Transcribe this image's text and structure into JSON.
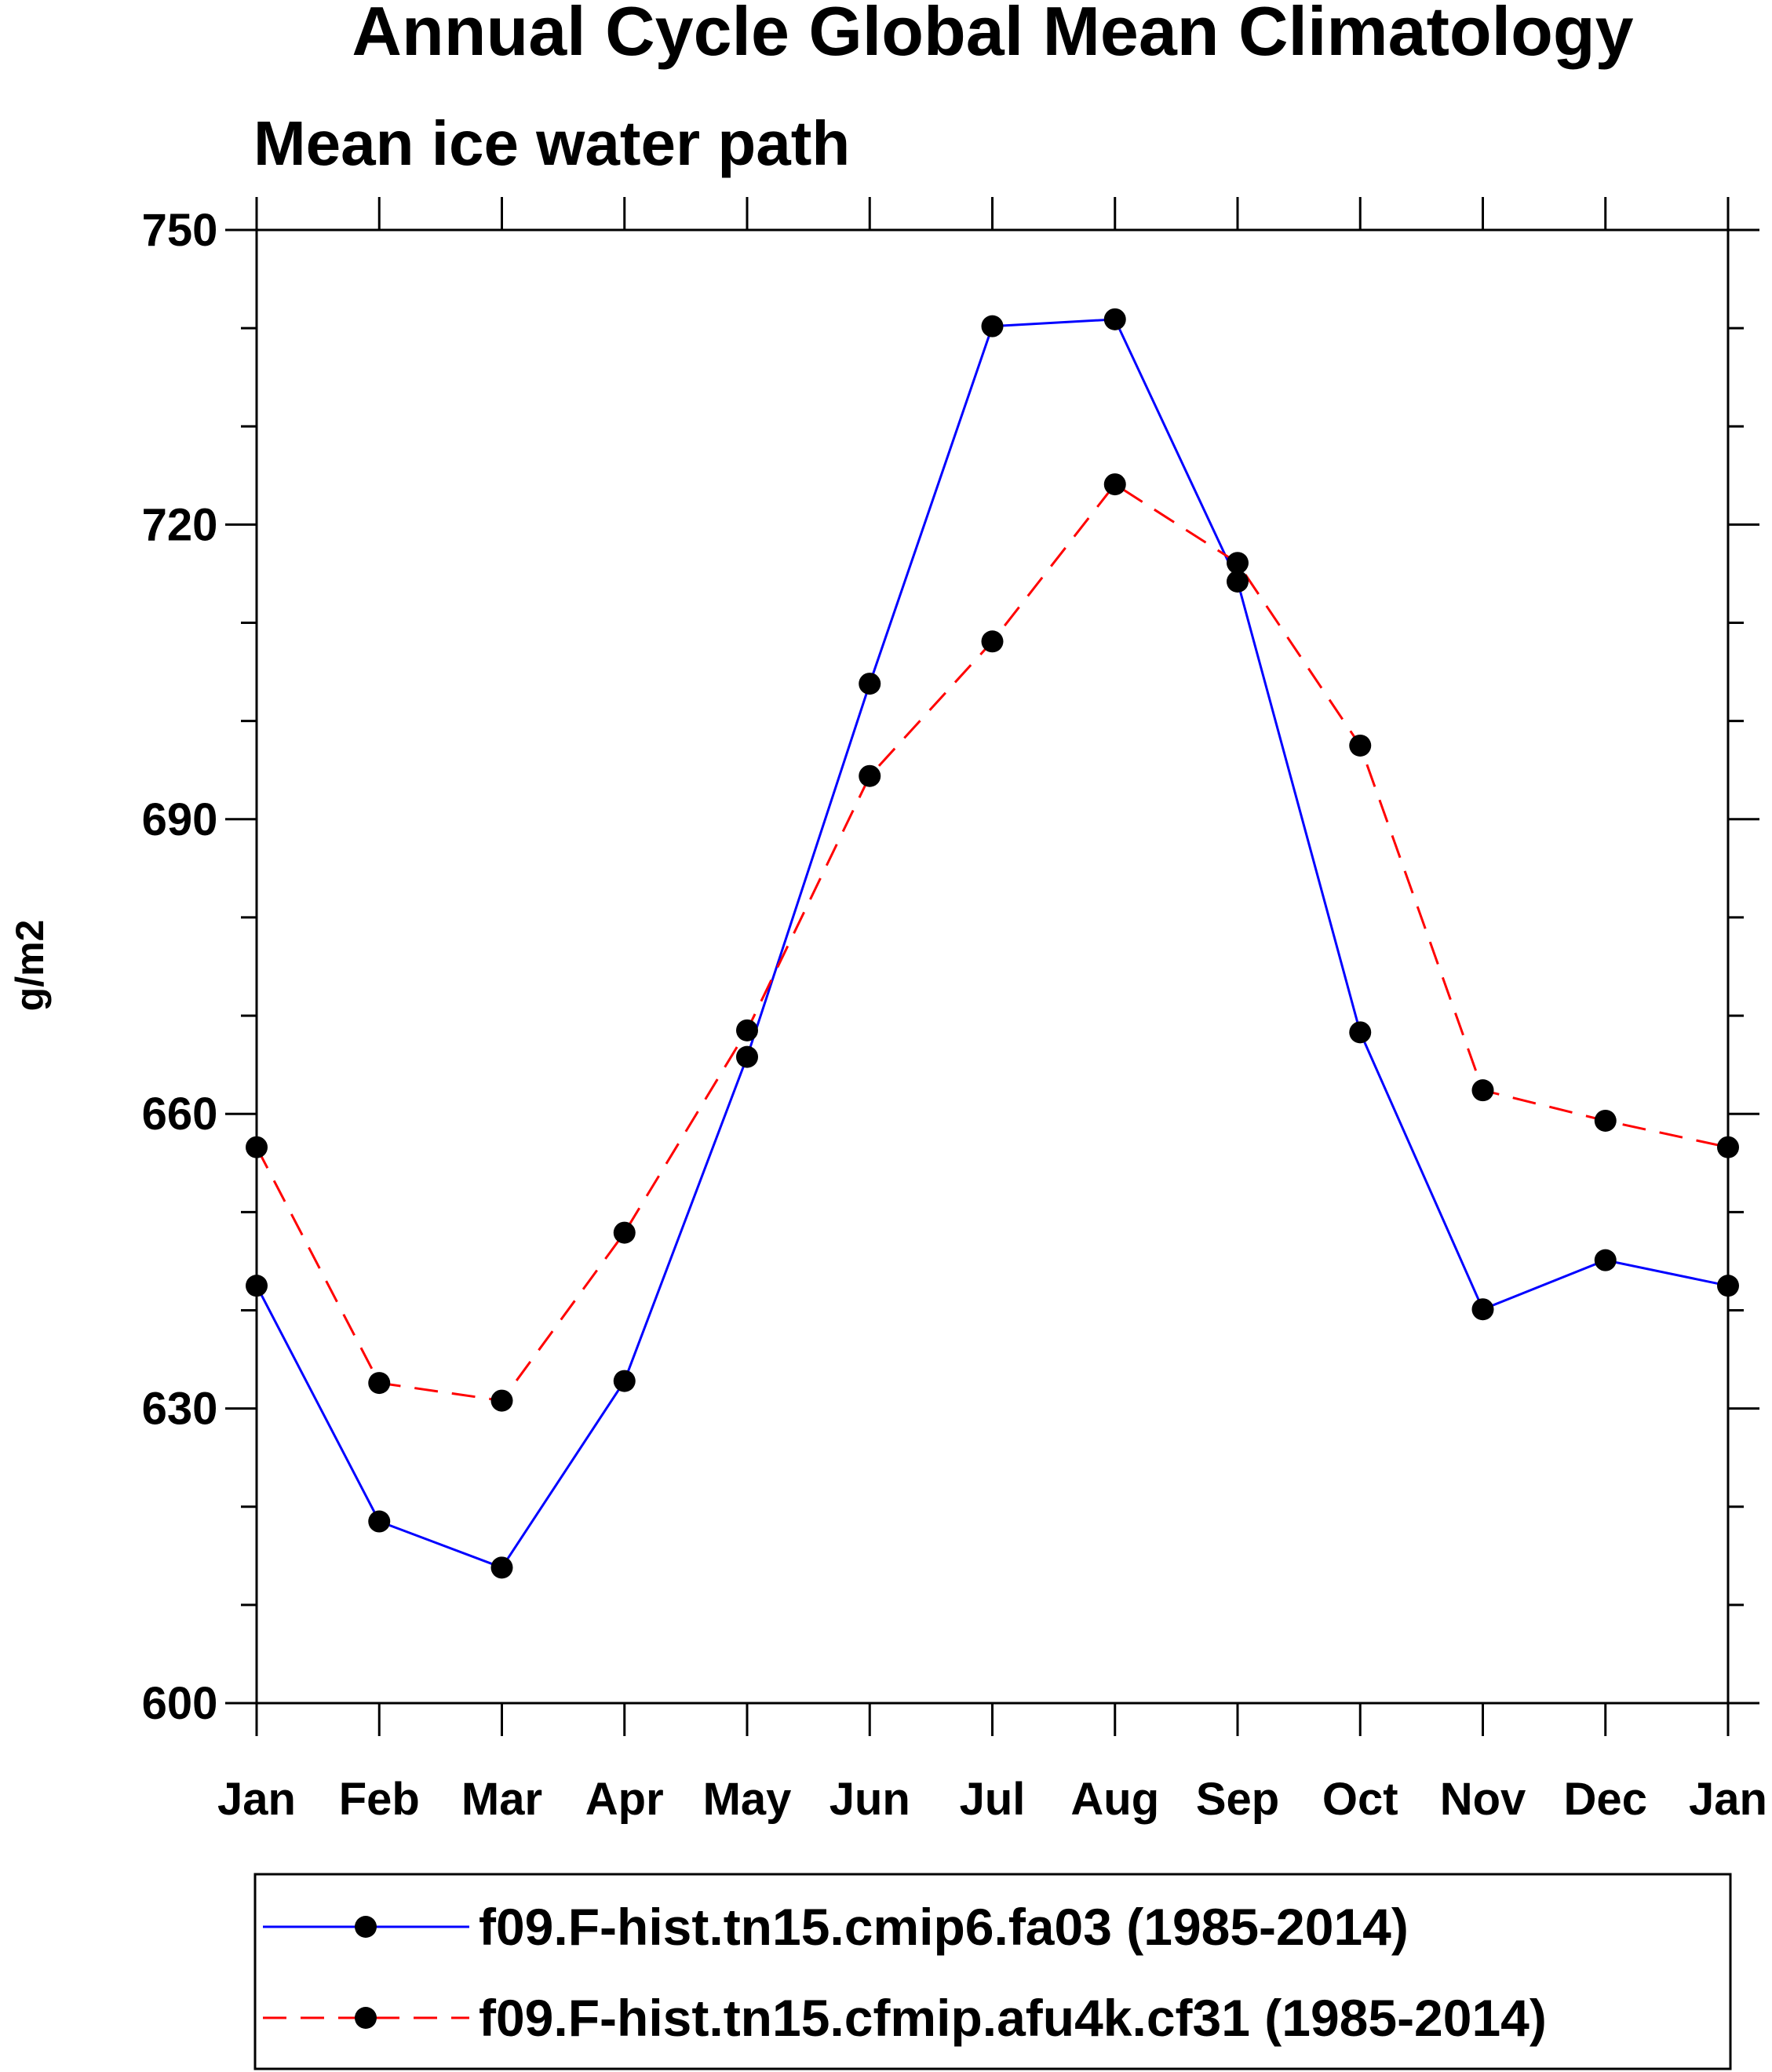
{
  "chart_data": {
    "type": "line",
    "title": "Annual Cycle Global Mean Climatology",
    "subtitle": "Mean ice water path",
    "xlabel": "",
    "ylabel": "g/m2",
    "categories": [
      "Jan",
      "Feb",
      "Mar",
      "Apr",
      "May",
      "Jun",
      "Jul",
      "Aug",
      "Sep",
      "Oct",
      "Nov",
      "Dec",
      "Jan"
    ],
    "ylim": [
      600,
      750
    ],
    "yticks": [
      600,
      630,
      660,
      690,
      720,
      750
    ],
    "yticks_labels": [
      "600",
      "630",
      "660",
      "690",
      "720",
      "750"
    ],
    "minor_ytick_step": 10,
    "grid": false,
    "legend_position": "bottom",
    "series": [
      {
        "name": "f09.F-hist.tn15.cmip6.fa03 (1985-2014)",
        "color": "#0000ff",
        "dash": "solid",
        "marker": "filled-circle",
        "values": [
          642.5,
          618.5,
          613.8,
          632.8,
          665.8,
          703.8,
          740.2,
          740.9,
          714.2,
          668.3,
          640.1,
          645.1,
          642.5
        ]
      },
      {
        "name": "f09.F-hist.tn15.cfmip.afu4k.cf31 (1985-2014)",
        "color": "#ff0000",
        "dash": "dashed",
        "marker": "filled-circle",
        "values": [
          656.6,
          632.6,
          630.8,
          647.9,
          668.5,
          694.4,
          708.1,
          724.1,
          716.1,
          697.5,
          662.4,
          659.3,
          656.6
        ]
      }
    ]
  }
}
